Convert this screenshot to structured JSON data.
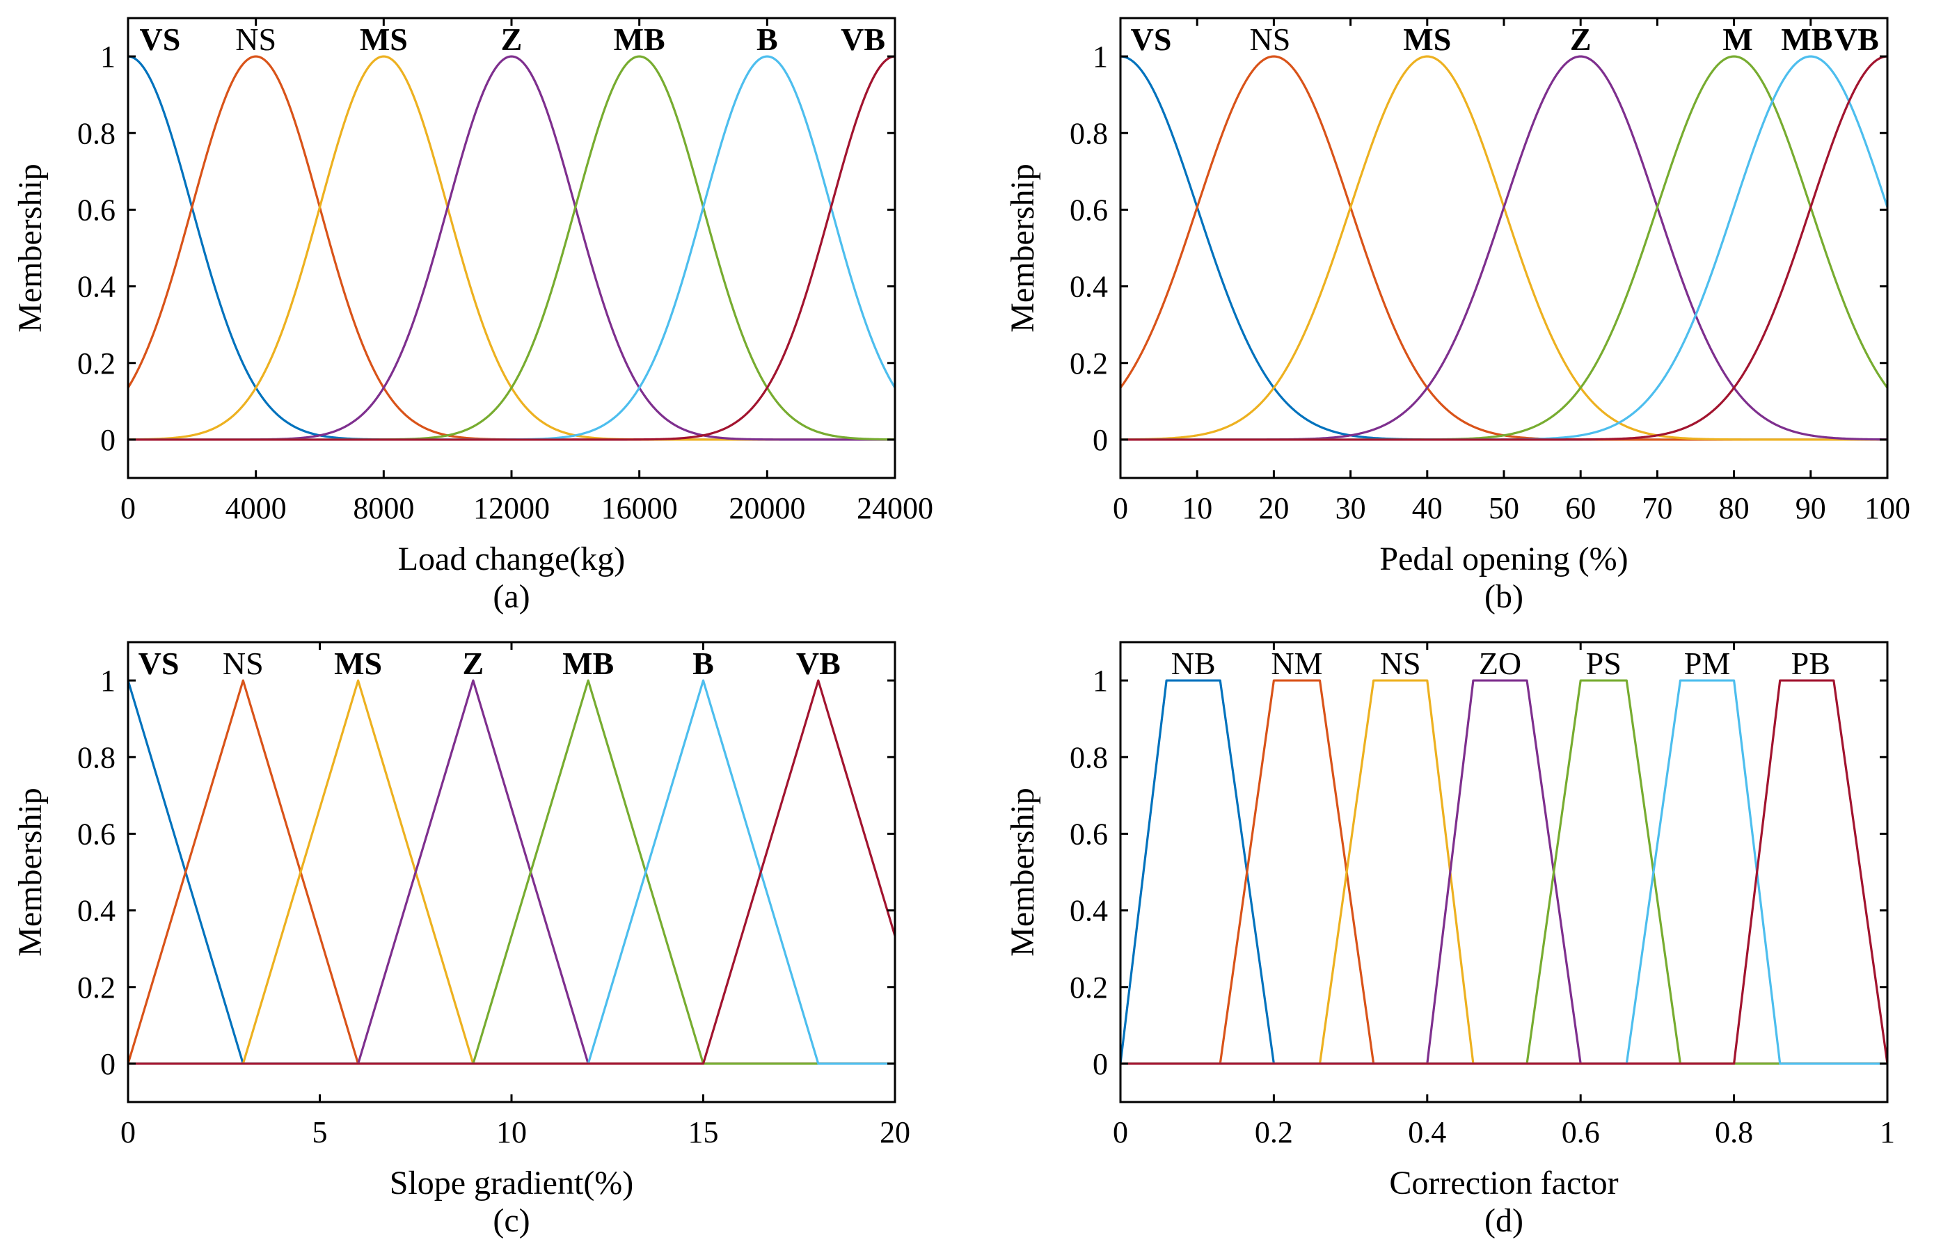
{
  "figure": {
    "ylabel": "Membership"
  },
  "palette": [
    "#0072BD",
    "#D95319",
    "#EDB120",
    "#7E2F8E",
    "#77AC30",
    "#4DBEEE",
    "#A2142F"
  ],
  "chart_data": [
    {
      "id": "a",
      "type": "line",
      "shape": "gauss",
      "caption": "(a)",
      "xlabel": "Load change(kg)",
      "ylabel": "Membership",
      "xlim": [
        0,
        24000
      ],
      "ylim": [
        -0.1,
        1.1
      ],
      "xticks": [
        0,
        4000,
        8000,
        12000,
        16000,
        20000,
        24000
      ],
      "xtick_labels": [
        "0",
        "4000",
        "8000",
        "12000",
        "16000",
        "20000",
        "24000"
      ],
      "yticks": [
        0,
        0.2,
        0.4,
        0.6,
        0.8,
        1
      ],
      "ytick_labels": [
        "0",
        "0.2",
        "0.4",
        "0.6",
        "0.8",
        "1"
      ],
      "series": [
        {
          "name": "VS",
          "sigma": 2000,
          "center": 0
        },
        {
          "name": "NS",
          "sigma": 2000,
          "center": 4000
        },
        {
          "name": "MS",
          "sigma": 2000,
          "center": 8000
        },
        {
          "name": "Z",
          "sigma": 2000,
          "center": 12000
        },
        {
          "name": "MB",
          "sigma": 2000,
          "center": 16000
        },
        {
          "name": "B",
          "sigma": 2000,
          "center": 20000
        },
        {
          "name": "VB",
          "sigma": 2000,
          "center": 24000
        }
      ],
      "term_labels": [
        {
          "text": "VS",
          "x": 1000,
          "bold": true
        },
        {
          "text": "NS",
          "x": 4000,
          "bold": false
        },
        {
          "text": "MS",
          "x": 8000,
          "bold": true
        },
        {
          "text": "Z",
          "x": 12000,
          "bold": true
        },
        {
          "text": "MB",
          "x": 16000,
          "bold": true
        },
        {
          "text": "B",
          "x": 20000,
          "bold": true
        },
        {
          "text": "VB",
          "x": 23000,
          "bold": true
        }
      ]
    },
    {
      "id": "b",
      "type": "line",
      "shape": "gauss",
      "caption": "(b)",
      "xlabel": "Pedal opening (%)",
      "ylabel": "Membership",
      "xlim": [
        0,
        100
      ],
      "ylim": [
        -0.1,
        1.1
      ],
      "xticks": [
        0,
        10,
        20,
        30,
        40,
        50,
        60,
        70,
        80,
        90,
        100
      ],
      "xtick_labels": [
        "0",
        "10",
        "20",
        "30",
        "40",
        "50",
        "60",
        "70",
        "80",
        "90",
        "100"
      ],
      "yticks": [
        0,
        0.2,
        0.4,
        0.6,
        0.8,
        1
      ],
      "ytick_labels": [
        "0",
        "0.2",
        "0.4",
        "0.6",
        "0.8",
        "1"
      ],
      "series": [
        {
          "name": "VS",
          "sigma": 10,
          "center": 0
        },
        {
          "name": "NS",
          "sigma": 10,
          "center": 20
        },
        {
          "name": "MS",
          "sigma": 10,
          "center": 40
        },
        {
          "name": "Z",
          "sigma": 10,
          "center": 60
        },
        {
          "name": "M",
          "sigma": 10,
          "center": 80
        },
        {
          "name": "MB",
          "sigma": 10,
          "center": 90
        },
        {
          "name": "VB",
          "sigma": 10,
          "center": 100
        }
      ],
      "term_labels": [
        {
          "text": "VS",
          "x": 4,
          "bold": true
        },
        {
          "text": "NS",
          "x": 19.5,
          "bold": false
        },
        {
          "text": "MS",
          "x": 40,
          "bold": true
        },
        {
          "text": "Z",
          "x": 60,
          "bold": true
        },
        {
          "text": "M",
          "x": 80.5,
          "bold": true
        },
        {
          "text": "MB",
          "x": 89.5,
          "bold": true
        },
        {
          "text": "VB",
          "x": 96,
          "bold": true
        }
      ]
    },
    {
      "id": "c",
      "type": "line",
      "shape": "tri",
      "caption": "(c)",
      "xlabel": "Slope gradient(%)",
      "ylabel": "Membership",
      "xlim": [
        0,
        20
      ],
      "ylim": [
        -0.1,
        1.1
      ],
      "xticks": [
        0,
        5,
        10,
        15,
        20
      ],
      "xtick_labels": [
        "0",
        "5",
        "10",
        "15",
        "20"
      ],
      "yticks": [
        0,
        0.2,
        0.4,
        0.6,
        0.8,
        1
      ],
      "ytick_labels": [
        "0",
        "0.2",
        "0.4",
        "0.6",
        "0.8",
        "1"
      ],
      "series": [
        {
          "name": "VS",
          "params": [
            -3,
            0,
            3
          ]
        },
        {
          "name": "NS",
          "params": [
            0,
            3,
            6
          ]
        },
        {
          "name": "MS",
          "params": [
            3,
            6,
            9
          ]
        },
        {
          "name": "Z",
          "params": [
            6,
            9,
            12
          ]
        },
        {
          "name": "MB",
          "params": [
            9,
            12,
            15
          ]
        },
        {
          "name": "B",
          "params": [
            12,
            15,
            18
          ]
        },
        {
          "name": "VB",
          "params": [
            15,
            18,
            21
          ]
        }
      ],
      "term_labels": [
        {
          "text": "VS",
          "x": 0.8,
          "bold": true
        },
        {
          "text": "NS",
          "x": 3,
          "bold": false
        },
        {
          "text": "MS",
          "x": 6,
          "bold": true
        },
        {
          "text": "Z",
          "x": 9,
          "bold": true
        },
        {
          "text": "MB",
          "x": 12,
          "bold": true
        },
        {
          "text": "B",
          "x": 15,
          "bold": true
        },
        {
          "text": "VB",
          "x": 18,
          "bold": true
        }
      ]
    },
    {
      "id": "d",
      "type": "line",
      "shape": "trap",
      "caption": "(d)",
      "xlabel": "Correction factor",
      "ylabel": "Membership",
      "xlim": [
        0,
        1
      ],
      "ylim": [
        -0.1,
        1.1
      ],
      "xticks": [
        0,
        0.2,
        0.4,
        0.6,
        0.8,
        1
      ],
      "xtick_labels": [
        "0",
        "0.2",
        "0.4",
        "0.6",
        "0.8",
        "1"
      ],
      "yticks": [
        0,
        0.2,
        0.4,
        0.6,
        0.8,
        1
      ],
      "ytick_labels": [
        "0",
        "0.2",
        "0.4",
        "0.6",
        "0.8",
        "1"
      ],
      "series": [
        {
          "name": "NB",
          "params": [
            0,
            0.06,
            0.13,
            0.2
          ]
        },
        {
          "name": "NM",
          "params": [
            0.13,
            0.2,
            0.26,
            0.33
          ]
        },
        {
          "name": "NS",
          "params": [
            0.26,
            0.33,
            0.4,
            0.46
          ]
        },
        {
          "name": "ZO",
          "params": [
            0.4,
            0.46,
            0.53,
            0.6
          ]
        },
        {
          "name": "PS",
          "params": [
            0.53,
            0.6,
            0.66,
            0.73
          ]
        },
        {
          "name": "PM",
          "params": [
            0.66,
            0.73,
            0.8,
            0.86
          ]
        },
        {
          "name": "PB",
          "params": [
            0.8,
            0.86,
            0.93,
            1
          ]
        }
      ],
      "term_labels": [
        {
          "text": "NB",
          "x": 0.095,
          "bold": false
        },
        {
          "text": "NM",
          "x": 0.23,
          "bold": false
        },
        {
          "text": "NS",
          "x": 0.365,
          "bold": false
        },
        {
          "text": "ZO",
          "x": 0.495,
          "bold": false
        },
        {
          "text": "PS",
          "x": 0.63,
          "bold": false
        },
        {
          "text": "PM",
          "x": 0.765,
          "bold": false
        },
        {
          "text": "PB",
          "x": 0.9,
          "bold": false
        }
      ]
    }
  ]
}
